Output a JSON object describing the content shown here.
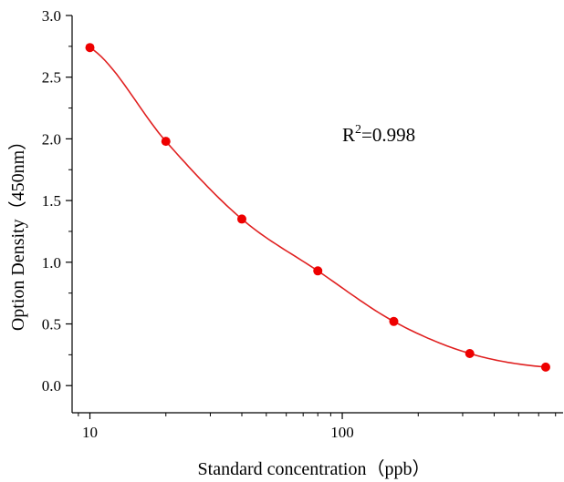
{
  "chart_data": {
    "type": "scatter",
    "xscale": "log",
    "xlabel": "Standard concentration（ppb）",
    "ylabel": "Option Density（450nm）",
    "xlim": [
      8.5,
      750
    ],
    "ylim": [
      -0.22,
      3.0
    ],
    "xticks": [
      10,
      100
    ],
    "xtick_labels": [
      "10",
      "100"
    ],
    "yticks": [
      0.0,
      0.5,
      1.0,
      1.5,
      2.0,
      2.5,
      3.0
    ],
    "ytick_labels": [
      "0.0",
      "0.5",
      "1.0",
      "1.5",
      "2.0",
      "2.5",
      "3.0"
    ],
    "grid": false,
    "series": [
      {
        "marker_color": "#ee0000",
        "line_color": "#e02020",
        "x": [
          10,
          20,
          40,
          80,
          160,
          320,
          640
        ],
        "y": [
          2.74,
          1.98,
          1.35,
          0.93,
          0.52,
          0.26,
          0.15
        ]
      }
    ],
    "annotation": {
      "base": "R",
      "superscript": "2",
      "rest": "=0.998"
    }
  }
}
